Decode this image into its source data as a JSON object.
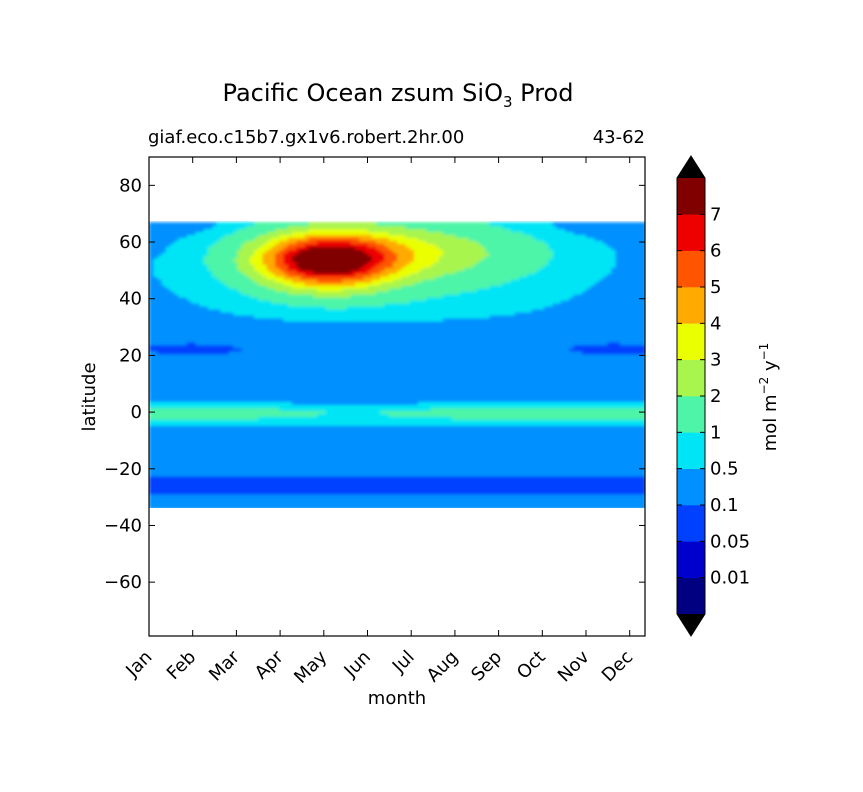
{
  "chart_data": {
    "type": "heatmap",
    "subtype": "filled-contour",
    "title": "Pacific Ocean zsum SiO",
    "title_subscript": "3",
    "title_suffix": " Prod",
    "subtitle_left": "giaf.eco.c15b7.gx1v6.robert.2hr.00",
    "subtitle_right": "43-62",
    "xlabel": "month",
    "ylabel": "latitude",
    "x_ticks": [
      "Jan",
      "Feb",
      "Mar",
      "Apr",
      "May",
      "Jun",
      "Jul",
      "Aug",
      "Sep",
      "Oct",
      "Nov",
      "Dec"
    ],
    "xlim": [
      0,
      11.35
    ],
    "y_ticks": [
      80,
      60,
      40,
      20,
      0,
      -20,
      -40,
      -60
    ],
    "y_tick_labels": [
      "80",
      "60",
      "40",
      "20",
      "0",
      "−20",
      "−40",
      "−60"
    ],
    "ylim": [
      -79,
      90
    ],
    "data_lat_range": [
      -34,
      67
    ],
    "grid": false,
    "colorbar": {
      "label_main": "mol m",
      "label_exp1": "−2",
      "label_mid": " y",
      "label_exp2": "−1",
      "levels": [
        0,
        0.01,
        0.05,
        0.1,
        0.5,
        1,
        2,
        3,
        4,
        5,
        6,
        7,
        8
      ],
      "tick_labels": [
        "0.01",
        "0.05",
        "0.1",
        "0.5",
        "1",
        "2",
        "3",
        "4",
        "5",
        "6",
        "7"
      ],
      "colors": [
        "#000080",
        "#0000cd",
        "#0040ff",
        "#0090ff",
        "#00e5f5",
        "#4ef5a8",
        "#a8f54e",
        "#eaff00",
        "#ffaa00",
        "#ff5500",
        "#ee0000",
        "#800000"
      ],
      "extend": "both",
      "extend_color": "#000000"
    }
  }
}
